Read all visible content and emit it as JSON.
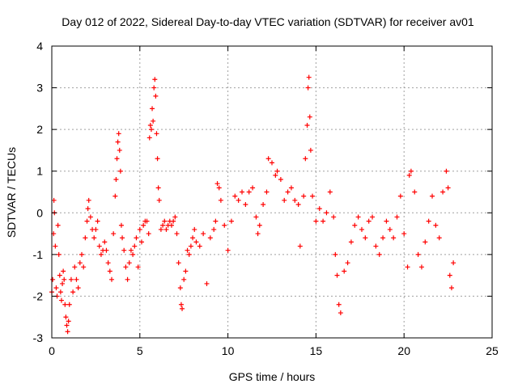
{
  "chart_data": {
    "type": "scatter",
    "title": "Day 012 of 2022, Sidereal Day-to-day VTEC variation (SDTVAR) for receiver av01",
    "xlabel": "GPS time / hours",
    "ylabel": "SDTVAR / TECUs",
    "xlim": [
      0,
      25
    ],
    "ylim": [
      -3,
      4
    ],
    "xticks": [
      0,
      5,
      10,
      15,
      20,
      25
    ],
    "yticks": [
      -3,
      -2,
      -1,
      0,
      1,
      2,
      3,
      4
    ],
    "grid": true,
    "marker": "+",
    "color": "#ff0000",
    "series": [
      {
        "name": "SDTVAR",
        "points": [
          [
            0.0,
            -1.9
          ],
          [
            0.05,
            -1.6
          ],
          [
            0.1,
            -0.5
          ],
          [
            0.12,
            0.3
          ],
          [
            0.15,
            0.0
          ],
          [
            0.2,
            -0.8
          ],
          [
            0.25,
            -1.8
          ],
          [
            0.3,
            -2.0
          ],
          [
            0.35,
            -0.3
          ],
          [
            0.4,
            -1.0
          ],
          [
            0.45,
            -1.5
          ],
          [
            0.5,
            -1.9
          ],
          [
            0.55,
            -2.1
          ],
          [
            0.6,
            -1.7
          ],
          [
            0.65,
            -1.4
          ],
          [
            0.7,
            -1.6
          ],
          [
            0.75,
            -2.2
          ],
          [
            0.8,
            -2.5
          ],
          [
            0.85,
            -2.7
          ],
          [
            0.9,
            -2.85
          ],
          [
            0.95,
            -2.6
          ],
          [
            1.0,
            -2.2
          ],
          [
            1.1,
            -1.6
          ],
          [
            1.2,
            -1.9
          ],
          [
            1.3,
            -1.3
          ],
          [
            1.4,
            -1.6
          ],
          [
            1.5,
            -1.8
          ],
          [
            1.6,
            -1.2
          ],
          [
            1.7,
            -1.0
          ],
          [
            1.8,
            -1.3
          ],
          [
            1.9,
            -0.6
          ],
          [
            2.0,
            -0.2
          ],
          [
            2.05,
            0.1
          ],
          [
            2.1,
            0.3
          ],
          [
            2.2,
            -0.1
          ],
          [
            2.3,
            -0.4
          ],
          [
            2.4,
            -0.6
          ],
          [
            2.5,
            -0.4
          ],
          [
            2.6,
            -0.2
          ],
          [
            2.7,
            -0.8
          ],
          [
            2.8,
            -1.0
          ],
          [
            2.9,
            -0.9
          ],
          [
            3.0,
            -0.7
          ],
          [
            3.1,
            -0.9
          ],
          [
            3.2,
            -1.2
          ],
          [
            3.3,
            -1.4
          ],
          [
            3.4,
            -1.6
          ],
          [
            3.5,
            -0.5
          ],
          [
            3.6,
            0.4
          ],
          [
            3.65,
            0.8
          ],
          [
            3.7,
            1.3
          ],
          [
            3.75,
            1.7
          ],
          [
            3.8,
            1.9
          ],
          [
            3.85,
            1.5
          ],
          [
            3.9,
            1.0
          ],
          [
            3.95,
            -0.3
          ],
          [
            4.0,
            -0.6
          ],
          [
            4.1,
            -0.9
          ],
          [
            4.2,
            -1.3
          ],
          [
            4.3,
            -1.6
          ],
          [
            4.4,
            -1.2
          ],
          [
            4.5,
            -0.9
          ],
          [
            4.6,
            -1.0
          ],
          [
            4.7,
            -0.8
          ],
          [
            4.8,
            -0.6
          ],
          [
            4.9,
            -1.3
          ],
          [
            5.0,
            -0.4
          ],
          [
            5.1,
            -0.7
          ],
          [
            5.2,
            -0.3
          ],
          [
            5.3,
            -0.2
          ],
          [
            5.4,
            -0.2
          ],
          [
            5.5,
            -0.5
          ],
          [
            5.55,
            1.8
          ],
          [
            5.6,
            2.1
          ],
          [
            5.65,
            2.0
          ],
          [
            5.7,
            2.5
          ],
          [
            5.75,
            2.2
          ],
          [
            5.8,
            3.0
          ],
          [
            5.85,
            3.2
          ],
          [
            5.9,
            2.8
          ],
          [
            5.95,
            1.9
          ],
          [
            6.0,
            1.3
          ],
          [
            6.05,
            0.6
          ],
          [
            6.1,
            0.3
          ],
          [
            6.2,
            -0.4
          ],
          [
            6.3,
            -0.3
          ],
          [
            6.4,
            -0.2
          ],
          [
            6.5,
            -0.4
          ],
          [
            6.6,
            -0.3
          ],
          [
            6.7,
            -0.2
          ],
          [
            6.8,
            -0.3
          ],
          [
            6.9,
            -0.2
          ],
          [
            7.0,
            -0.1
          ],
          [
            7.1,
            -0.5
          ],
          [
            7.2,
            -1.2
          ],
          [
            7.3,
            -1.8
          ],
          [
            7.35,
            -2.2
          ],
          [
            7.4,
            -2.3
          ],
          [
            7.5,
            -1.6
          ],
          [
            7.6,
            -1.4
          ],
          [
            7.7,
            -0.9
          ],
          [
            7.8,
            -1.0
          ],
          [
            7.9,
            -0.8
          ],
          [
            8.0,
            -0.6
          ],
          [
            8.1,
            -0.4
          ],
          [
            8.2,
            -0.7
          ],
          [
            8.4,
            -0.8
          ],
          [
            8.6,
            -0.5
          ],
          [
            8.8,
            -1.7
          ],
          [
            9.0,
            -0.6
          ],
          [
            9.2,
            -0.4
          ],
          [
            9.3,
            -0.2
          ],
          [
            9.4,
            0.7
          ],
          [
            9.5,
            0.6
          ],
          [
            9.6,
            0.3
          ],
          [
            9.8,
            -0.3
          ],
          [
            10.0,
            -0.9
          ],
          [
            10.2,
            -0.2
          ],
          [
            10.4,
            0.4
          ],
          [
            10.6,
            0.3
          ],
          [
            10.8,
            0.5
          ],
          [
            11.0,
            0.2
          ],
          [
            11.2,
            0.5
          ],
          [
            11.4,
            0.6
          ],
          [
            11.6,
            -0.1
          ],
          [
            11.7,
            -0.5
          ],
          [
            11.8,
            -0.3
          ],
          [
            12.0,
            0.2
          ],
          [
            12.2,
            0.5
          ],
          [
            12.3,
            1.3
          ],
          [
            12.5,
            1.2
          ],
          [
            12.7,
            0.9
          ],
          [
            12.8,
            1.0
          ],
          [
            13.0,
            0.8
          ],
          [
            13.2,
            0.3
          ],
          [
            13.4,
            0.5
          ],
          [
            13.6,
            0.6
          ],
          [
            13.8,
            0.3
          ],
          [
            14.0,
            0.2
          ],
          [
            14.1,
            -0.8
          ],
          [
            14.3,
            0.4
          ],
          [
            14.4,
            1.3
          ],
          [
            14.5,
            2.1
          ],
          [
            14.55,
            3.0
          ],
          [
            14.6,
            3.25
          ],
          [
            14.65,
            2.3
          ],
          [
            14.7,
            1.5
          ],
          [
            14.8,
            0.4
          ],
          [
            15.0,
            -0.2
          ],
          [
            15.2,
            0.1
          ],
          [
            15.4,
            -0.2
          ],
          [
            15.6,
            0.0
          ],
          [
            15.8,
            0.5
          ],
          [
            16.0,
            -0.1
          ],
          [
            16.1,
            -1.0
          ],
          [
            16.2,
            -1.5
          ],
          [
            16.3,
            -2.2
          ],
          [
            16.4,
            -2.4
          ],
          [
            16.6,
            -1.4
          ],
          [
            16.8,
            -1.2
          ],
          [
            17.0,
            -0.7
          ],
          [
            17.2,
            -0.3
          ],
          [
            17.4,
            -0.1
          ],
          [
            17.6,
            -0.4
          ],
          [
            17.8,
            -0.6
          ],
          [
            18.0,
            -0.2
          ],
          [
            18.2,
            -0.1
          ],
          [
            18.4,
            -0.8
          ],
          [
            18.6,
            -1.0
          ],
          [
            18.8,
            -0.6
          ],
          [
            19.0,
            -0.2
          ],
          [
            19.2,
            -0.4
          ],
          [
            19.4,
            -0.6
          ],
          [
            19.6,
            -0.1
          ],
          [
            19.8,
            0.4
          ],
          [
            20.0,
            -0.5
          ],
          [
            20.2,
            -1.3
          ],
          [
            20.3,
            0.9
          ],
          [
            20.4,
            1.0
          ],
          [
            20.6,
            0.5
          ],
          [
            20.8,
            -1.0
          ],
          [
            21.0,
            -1.3
          ],
          [
            21.2,
            -0.7
          ],
          [
            21.4,
            -0.2
          ],
          [
            21.6,
            0.4
          ],
          [
            21.8,
            -0.3
          ],
          [
            22.0,
            -0.6
          ],
          [
            22.2,
            0.5
          ],
          [
            22.4,
            1.0
          ],
          [
            22.5,
            0.6
          ],
          [
            22.6,
            -1.5
          ],
          [
            22.7,
            -1.8
          ],
          [
            22.8,
            -1.2
          ]
        ]
      }
    ]
  }
}
